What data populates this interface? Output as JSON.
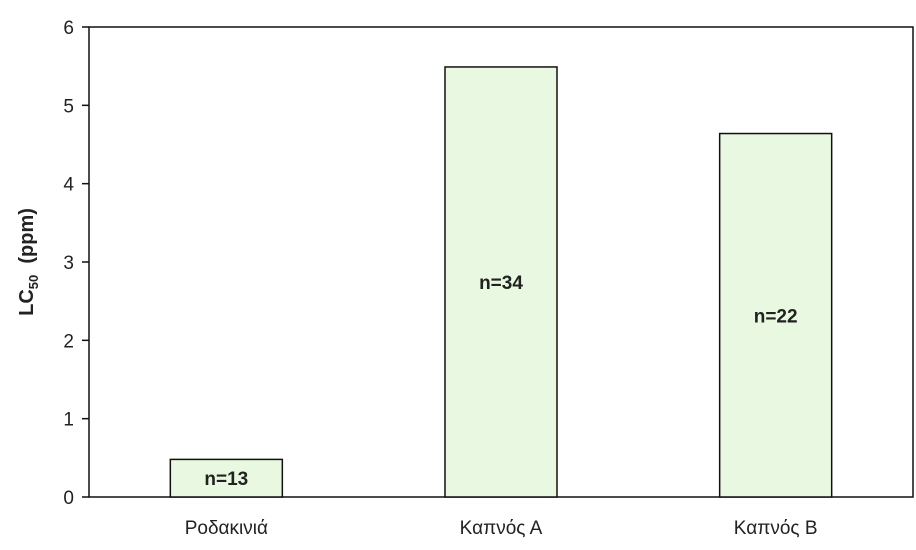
{
  "chart_data": {
    "type": "bar",
    "categories": [
      "Ροδακινιά",
      "Καπνός Α",
      "Καπνός Β"
    ],
    "values": [
      0.48,
      5.49,
      4.64
    ],
    "bar_labels": [
      "n=13",
      "n=34",
      "n=22"
    ],
    "title": "",
    "xlabel": "",
    "ylabel": {
      "main": "LC",
      "sub": "50",
      "unit": "  (ppm)"
    },
    "ylim": [
      0,
      6
    ],
    "yticks": [
      "0",
      "1",
      "2",
      "3",
      "4",
      "5",
      "6"
    ],
    "grid": false,
    "bar_color": "#e9f9e1",
    "bar_edge_color": "#111111"
  }
}
